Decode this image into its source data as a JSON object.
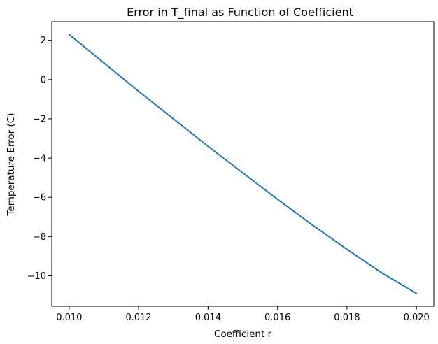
{
  "chart_data": {
    "type": "line",
    "title": "Error in T_final as Function of Coefficient",
    "xlabel": "Coefficient r",
    "ylabel": "Temperature Error (C)",
    "xlim": [
      0.0095,
      0.0205
    ],
    "ylim": [
      -11.55,
      2.95
    ],
    "xticks": [
      0.01,
      0.012,
      0.014,
      0.016,
      0.018,
      0.02
    ],
    "xtick_labels": [
      "0.010",
      "0.012",
      "0.014",
      "0.016",
      "0.018",
      "0.020"
    ],
    "yticks": [
      2,
      0,
      -2,
      -4,
      -6,
      -8,
      -10
    ],
    "ytick_labels": [
      "2",
      "0",
      "−2",
      "−4",
      "−6",
      "−8",
      "−10"
    ],
    "grid": false,
    "series": [
      {
        "color": "#1f77b4",
        "x": [
          0.01,
          0.011,
          0.012,
          0.013,
          0.014,
          0.015,
          0.016,
          0.017,
          0.018,
          0.019,
          0.02
        ],
        "y": [
          2.3,
          0.85,
          -0.6,
          -2.0,
          -3.4,
          -4.75,
          -6.1,
          -7.4,
          -8.65,
          -9.85,
          -10.9
        ]
      }
    ]
  }
}
